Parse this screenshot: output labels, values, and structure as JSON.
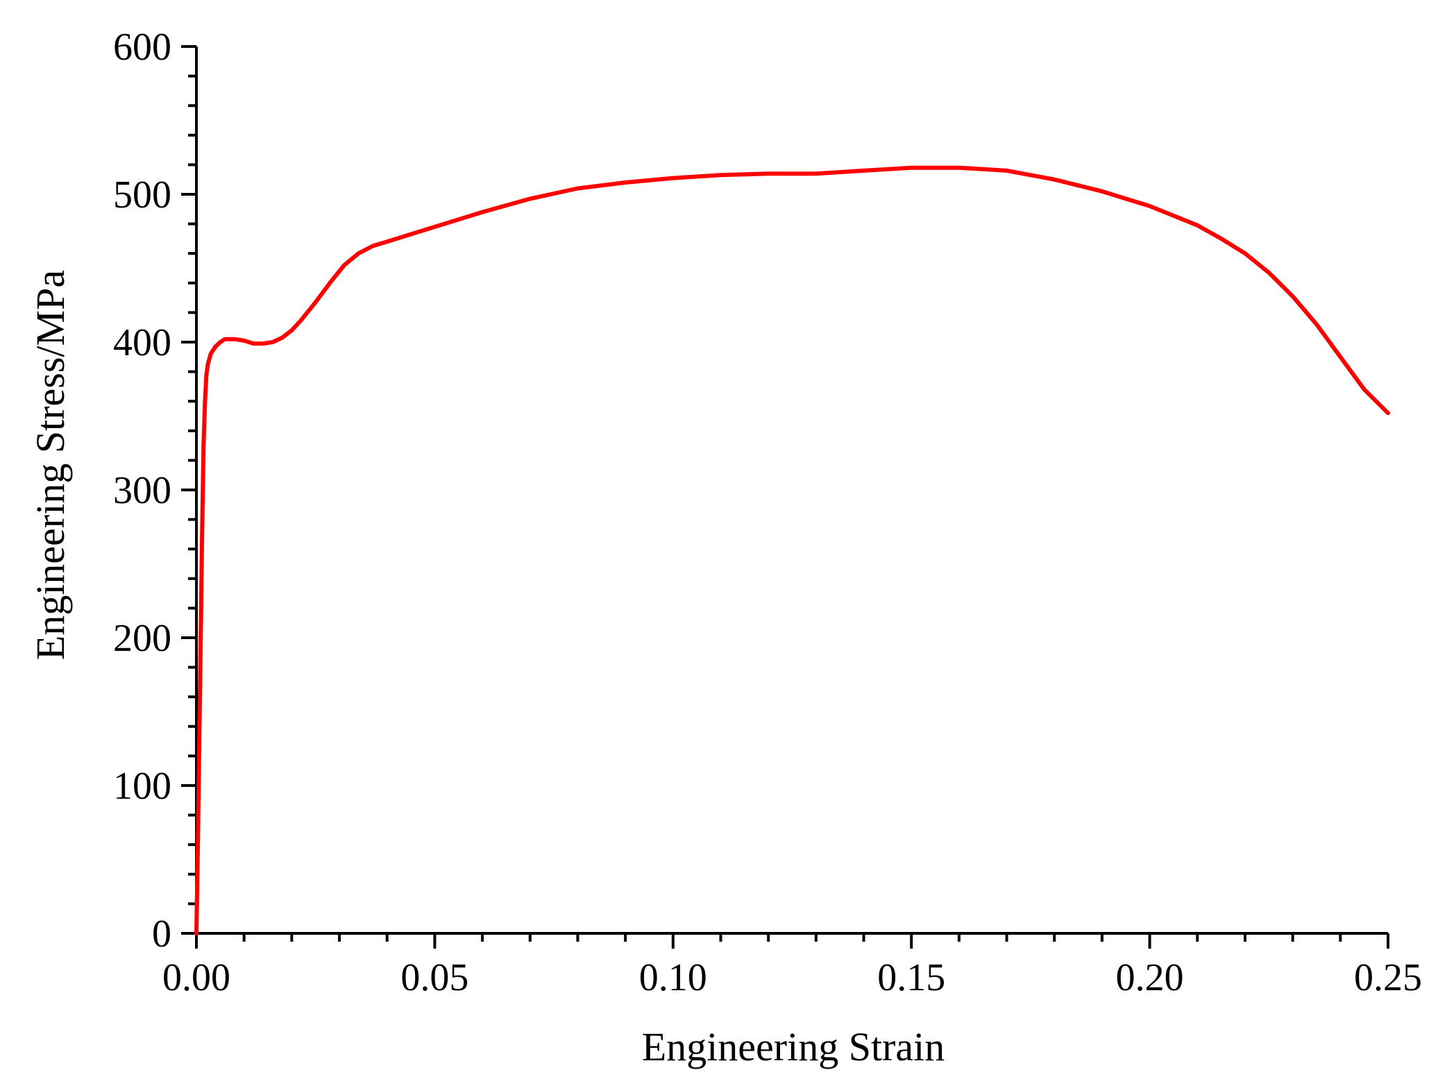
{
  "chart_data": {
    "type": "line",
    "title": "",
    "xlabel": "Engineering Strain",
    "ylabel": "Engineering Stress/MPa",
    "xlim": [
      0,
      0.25
    ],
    "ylim": [
      0,
      600
    ],
    "x_ticks": [
      "0.00",
      "0.05",
      "0.10",
      "0.15",
      "0.20",
      "0.25"
    ],
    "y_ticks": [
      "0",
      "100",
      "200",
      "300",
      "400",
      "500",
      "600"
    ],
    "grid": false,
    "legend": "none",
    "line_color": "#ff0000",
    "axis_color": "#000000",
    "series": [
      {
        "x": [
          0.0,
          0.0003,
          0.0006,
          0.0009,
          0.0012,
          0.0015,
          0.0018,
          0.0021,
          0.0024,
          0.003,
          0.004,
          0.005,
          0.006,
          0.008,
          0.01,
          0.012,
          0.014,
          0.016,
          0.018,
          0.02,
          0.022,
          0.025,
          0.028,
          0.031,
          0.034,
          0.037,
          0.04,
          0.045,
          0.05,
          0.06,
          0.07,
          0.08,
          0.09,
          0.1,
          0.11,
          0.12,
          0.13,
          0.14,
          0.15,
          0.16,
          0.165,
          0.17,
          0.18,
          0.19,
          0.2,
          0.21,
          0.215,
          0.22,
          0.225,
          0.23,
          0.235,
          0.24,
          0.245,
          0.25
        ],
        "y": [
          0,
          60,
          130,
          200,
          270,
          330,
          360,
          378,
          385,
          392,
          397,
          400,
          402,
          402,
          401,
          399,
          399,
          400,
          403,
          408,
          415,
          427,
          440,
          452,
          460,
          465,
          468,
          473,
          478,
          488,
          497,
          504,
          508,
          511,
          513,
          514,
          514,
          516,
          518,
          518,
          517,
          516,
          510,
          502,
          492,
          479,
          470,
          460,
          447,
          431,
          412,
          390,
          368,
          352
        ]
      }
    ]
  }
}
